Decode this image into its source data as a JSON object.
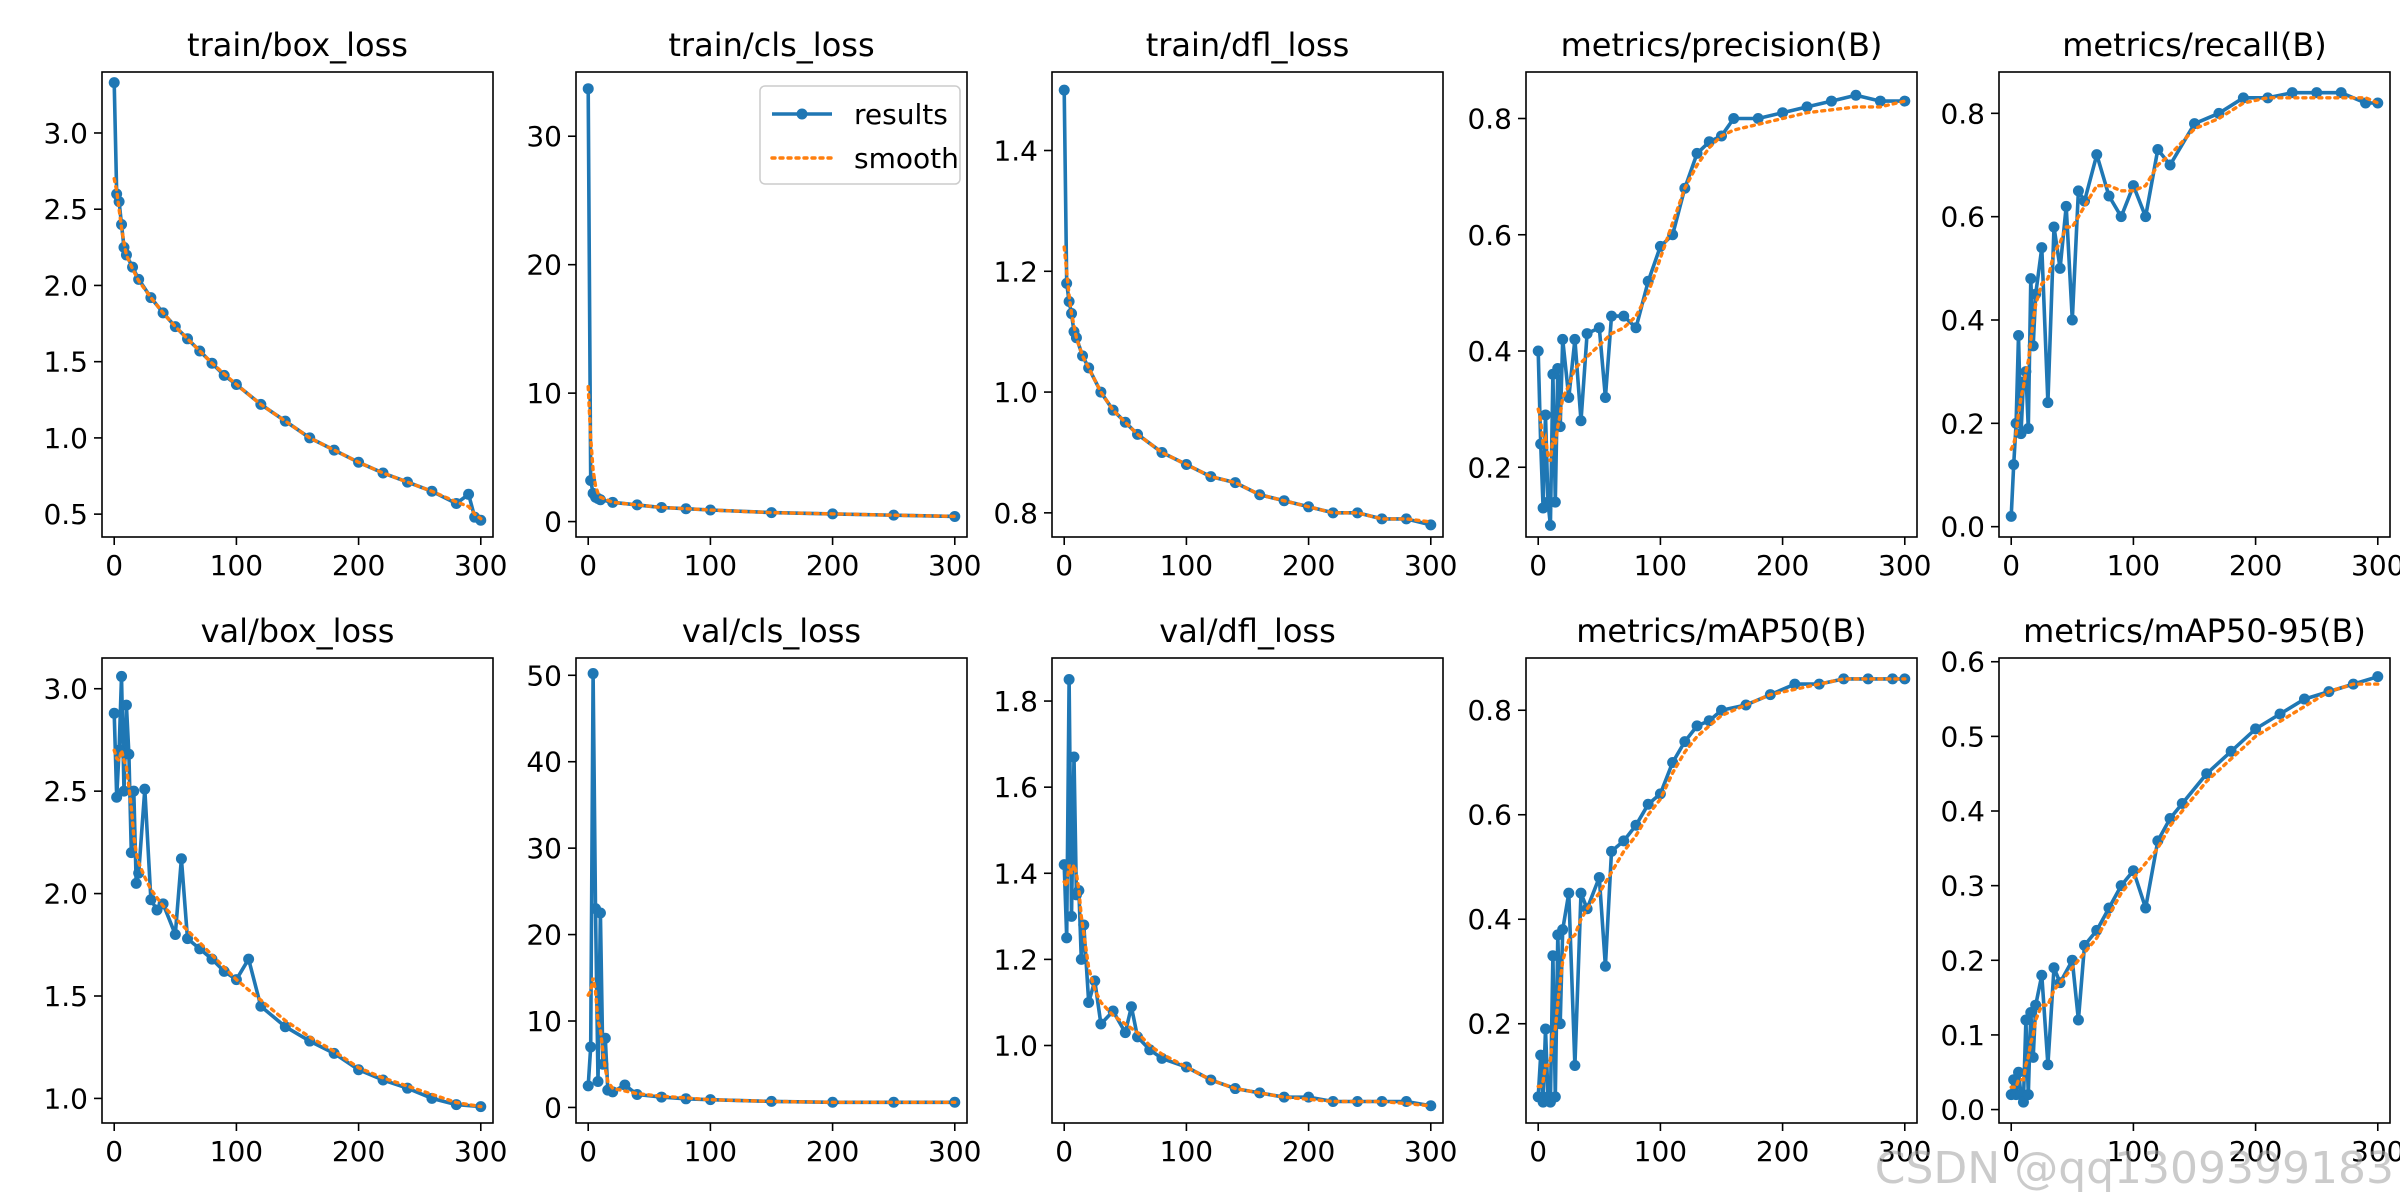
{
  "figure": {
    "watermark": "CSDN @qq1309399183",
    "colors": {
      "results": "#1f77b4",
      "smooth": "#ff7f0e"
    },
    "legend": {
      "results_label": "results",
      "smooth_label": "smooth",
      "location": "upper-right of train/cls_loss panel"
    }
  },
  "chart_data": [
    {
      "type": "line",
      "title": "train/box_loss",
      "xlim": [
        -10,
        310
      ],
      "ylim": [
        0.35,
        3.4
      ],
      "xticks": [
        0,
        100,
        200,
        300
      ],
      "yticks": [
        0.5,
        1.0,
        1.5,
        2.0,
        2.5,
        3.0
      ],
      "x": [
        0,
        2,
        4,
        6,
        8,
        10,
        15,
        20,
        30,
        40,
        50,
        60,
        70,
        80,
        90,
        100,
        120,
        140,
        160,
        180,
        200,
        220,
        240,
        260,
        280,
        290,
        295,
        300
      ],
      "series": [
        {
          "name": "results",
          "values": [
            3.33,
            2.6,
            2.55,
            2.4,
            2.25,
            2.2,
            2.12,
            2.04,
            1.92,
            1.82,
            1.73,
            1.65,
            1.57,
            1.49,
            1.41,
            1.35,
            1.22,
            1.11,
            1.0,
            0.92,
            0.84,
            0.77,
            0.71,
            0.65,
            0.57,
            0.63,
            0.48,
            0.46
          ]
        },
        {
          "name": "smooth",
          "values": [
            2.7,
            2.62,
            2.5,
            2.38,
            2.28,
            2.2,
            2.11,
            2.03,
            1.92,
            1.82,
            1.73,
            1.65,
            1.57,
            1.49,
            1.42,
            1.35,
            1.22,
            1.11,
            1.0,
            0.92,
            0.84,
            0.77,
            0.71,
            0.65,
            0.58,
            0.55,
            0.5,
            0.47
          ]
        }
      ]
    },
    {
      "type": "line",
      "title": "train/cls_loss",
      "xlim": [
        -10,
        310
      ],
      "ylim": [
        -1.2,
        35
      ],
      "legend": true,
      "xticks": [
        0,
        100,
        200,
        300
      ],
      "yticks": [
        0,
        10,
        20,
        30
      ],
      "x": [
        0,
        2,
        4,
        6,
        8,
        10,
        20,
        40,
        60,
        80,
        100,
        150,
        200,
        250,
        300
      ],
      "series": [
        {
          "name": "results",
          "values": [
            33.7,
            3.2,
            2.2,
            1.9,
            1.8,
            1.7,
            1.5,
            1.3,
            1.1,
            1.0,
            0.9,
            0.7,
            0.6,
            0.5,
            0.4
          ]
        },
        {
          "name": "smooth",
          "values": [
            10.5,
            6.5,
            4.0,
            2.8,
            2.2,
            1.9,
            1.5,
            1.3,
            1.1,
            1.0,
            0.9,
            0.7,
            0.6,
            0.5,
            0.4
          ]
        }
      ]
    },
    {
      "type": "line",
      "title": "train/dfl_loss",
      "xlim": [
        -10,
        310
      ],
      "ylim": [
        0.76,
        1.53
      ],
      "xticks": [
        0,
        100,
        200,
        300
      ],
      "yticks": [
        0.8,
        1.0,
        1.2,
        1.4
      ],
      "x": [
        0,
        2,
        4,
        6,
        8,
        10,
        15,
        20,
        30,
        40,
        50,
        60,
        80,
        100,
        120,
        140,
        160,
        180,
        200,
        220,
        240,
        260,
        280,
        300
      ],
      "series": [
        {
          "name": "results",
          "values": [
            1.5,
            1.18,
            1.15,
            1.13,
            1.1,
            1.09,
            1.06,
            1.04,
            1.0,
            0.97,
            0.95,
            0.93,
            0.9,
            0.88,
            0.86,
            0.85,
            0.83,
            0.82,
            0.81,
            0.8,
            0.8,
            0.79,
            0.79,
            0.78
          ]
        },
        {
          "name": "smooth",
          "values": [
            1.24,
            1.2,
            1.16,
            1.13,
            1.11,
            1.09,
            1.06,
            1.04,
            1.0,
            0.97,
            0.95,
            0.93,
            0.9,
            0.88,
            0.86,
            0.85,
            0.83,
            0.82,
            0.81,
            0.8,
            0.8,
            0.79,
            0.79,
            0.785
          ]
        }
      ]
    },
    {
      "type": "line",
      "title": "metrics/precision(B)",
      "xlim": [
        -10,
        310
      ],
      "ylim": [
        0.08,
        0.88
      ],
      "xticks": [
        0,
        100,
        200,
        300
      ],
      "yticks": [
        0.2,
        0.4,
        0.6,
        0.8
      ],
      "x": [
        0,
        2,
        4,
        6,
        8,
        10,
        12,
        14,
        16,
        18,
        20,
        25,
        30,
        35,
        40,
        50,
        55,
        60,
        70,
        80,
        90,
        100,
        110,
        120,
        130,
        140,
        150,
        160,
        180,
        200,
        220,
        240,
        260,
        280,
        300
      ],
      "series": [
        {
          "name": "results",
          "values": [
            0.4,
            0.24,
            0.13,
            0.29,
            0.14,
            0.1,
            0.36,
            0.14,
            0.37,
            0.27,
            0.42,
            0.32,
            0.42,
            0.28,
            0.43,
            0.44,
            0.32,
            0.46,
            0.46,
            0.44,
            0.52,
            0.58,
            0.6,
            0.68,
            0.74,
            0.76,
            0.77,
            0.8,
            0.8,
            0.81,
            0.82,
            0.83,
            0.84,
            0.83,
            0.83
          ]
        },
        {
          "name": "smooth",
          "values": [
            0.3,
            0.28,
            0.24,
            0.25,
            0.22,
            0.21,
            0.25,
            0.24,
            0.27,
            0.29,
            0.32,
            0.34,
            0.37,
            0.38,
            0.39,
            0.41,
            0.42,
            0.43,
            0.44,
            0.46,
            0.5,
            0.56,
            0.62,
            0.68,
            0.72,
            0.75,
            0.77,
            0.78,
            0.79,
            0.8,
            0.81,
            0.815,
            0.82,
            0.82,
            0.83
          ]
        }
      ]
    },
    {
      "type": "line",
      "title": "metrics/recall(B)",
      "xlim": [
        -10,
        310
      ],
      "ylim": [
        -0.02,
        0.88
      ],
      "xticks": [
        0,
        100,
        200,
        300
      ],
      "yticks": [
        0.0,
        0.2,
        0.4,
        0.6,
        0.8
      ],
      "x": [
        0,
        2,
        4,
        6,
        8,
        10,
        12,
        14,
        16,
        18,
        20,
        25,
        30,
        35,
        40,
        45,
        50,
        55,
        60,
        70,
        80,
        90,
        100,
        110,
        120,
        130,
        150,
        170,
        190,
        210,
        230,
        250,
        270,
        290,
        300
      ],
      "series": [
        {
          "name": "results",
          "values": [
            0.02,
            0.12,
            0.2,
            0.37,
            0.18,
            0.28,
            0.3,
            0.19,
            0.48,
            0.35,
            0.45,
            0.54,
            0.24,
            0.58,
            0.5,
            0.62,
            0.4,
            0.65,
            0.63,
            0.72,
            0.64,
            0.6,
            0.66,
            0.6,
            0.73,
            0.7,
            0.78,
            0.8,
            0.83,
            0.83,
            0.84,
            0.84,
            0.84,
            0.82,
            0.82
          ]
        },
        {
          "name": "smooth",
          "values": [
            0.15,
            0.16,
            0.18,
            0.22,
            0.25,
            0.27,
            0.3,
            0.32,
            0.36,
            0.4,
            0.43,
            0.47,
            0.48,
            0.53,
            0.55,
            0.58,
            0.58,
            0.6,
            0.62,
            0.66,
            0.66,
            0.65,
            0.65,
            0.66,
            0.7,
            0.72,
            0.77,
            0.79,
            0.82,
            0.83,
            0.83,
            0.83,
            0.83,
            0.83,
            0.82
          ]
        }
      ]
    },
    {
      "type": "line",
      "title": "val/box_loss",
      "xlim": [
        -10,
        310
      ],
      "ylim": [
        0.88,
        3.15
      ],
      "xticks": [
        0,
        100,
        200,
        300
      ],
      "yticks": [
        1.0,
        1.5,
        2.0,
        2.5,
        3.0
      ],
      "x": [
        0,
        2,
        4,
        6,
        8,
        10,
        12,
        14,
        16,
        18,
        20,
        25,
        30,
        35,
        40,
        50,
        55,
        60,
        70,
        80,
        90,
        100,
        110,
        120,
        140,
        160,
        180,
        200,
        220,
        240,
        260,
        280,
        300
      ],
      "series": [
        {
          "name": "results",
          "values": [
            2.88,
            2.47,
            2.7,
            3.06,
            2.5,
            2.92,
            2.68,
            2.2,
            2.5,
            2.05,
            2.1,
            2.51,
            1.97,
            1.92,
            1.95,
            1.8,
            2.17,
            1.78,
            1.73,
            1.68,
            1.62,
            1.58,
            1.68,
            1.45,
            1.35,
            1.28,
            1.22,
            1.14,
            1.09,
            1.05,
            1.0,
            0.97,
            0.96
          ]
        },
        {
          "name": "smooth",
          "values": [
            2.7,
            2.66,
            2.65,
            2.7,
            2.65,
            2.62,
            2.52,
            2.42,
            2.28,
            2.2,
            2.15,
            2.08,
            2.02,
            1.98,
            1.94,
            1.88,
            1.85,
            1.82,
            1.76,
            1.7,
            1.64,
            1.58,
            1.53,
            1.48,
            1.38,
            1.3,
            1.23,
            1.15,
            1.1,
            1.06,
            1.02,
            0.98,
            0.96
          ]
        }
      ]
    },
    {
      "type": "line",
      "title": "val/cls_loss",
      "xlim": [
        -10,
        310
      ],
      "ylim": [
        -1.8,
        52
      ],
      "xticks": [
        0,
        100,
        200,
        300
      ],
      "yticks": [
        0,
        10,
        20,
        30,
        40,
        50
      ],
      "x": [
        0,
        2,
        4,
        6,
        8,
        10,
        12,
        14,
        16,
        20,
        30,
        40,
        60,
        80,
        100,
        150,
        200,
        250,
        300
      ],
      "series": [
        {
          "name": "results",
          "values": [
            2.5,
            7.0,
            50.2,
            23.0,
            3.0,
            22.5,
            5.0,
            8.0,
            2.0,
            1.8,
            2.6,
            1.5,
            1.2,
            1.0,
            0.9,
            0.7,
            0.6,
            0.6,
            0.6
          ]
        },
        {
          "name": "smooth",
          "values": [
            13.0,
            13.5,
            15.0,
            13.5,
            10.0,
            9.0,
            6.5,
            4.5,
            3.0,
            2.2,
            1.9,
            1.6,
            1.3,
            1.1,
            0.9,
            0.7,
            0.6,
            0.6,
            0.6
          ]
        }
      ]
    },
    {
      "type": "line",
      "title": "val/dfl_loss",
      "xlim": [
        -10,
        310
      ],
      "ylim": [
        0.82,
        1.9
      ],
      "xticks": [
        0,
        100,
        200,
        300
      ],
      "yticks": [
        1.0,
        1.2,
        1.4,
        1.6,
        1.8
      ],
      "x": [
        0,
        2,
        4,
        6,
        8,
        10,
        12,
        14,
        16,
        20,
        25,
        30,
        40,
        50,
        55,
        60,
        70,
        80,
        100,
        120,
        140,
        160,
        180,
        200,
        220,
        240,
        260,
        280,
        300
      ],
      "series": [
        {
          "name": "results",
          "values": [
            1.42,
            1.25,
            1.85,
            1.3,
            1.67,
            1.35,
            1.36,
            1.2,
            1.28,
            1.1,
            1.15,
            1.05,
            1.08,
            1.03,
            1.09,
            1.02,
            0.99,
            0.97,
            0.95,
            0.92,
            0.9,
            0.89,
            0.88,
            0.88,
            0.87,
            0.87,
            0.87,
            0.87,
            0.86
          ]
        },
        {
          "name": "smooth",
          "values": [
            1.38,
            1.37,
            1.42,
            1.4,
            1.42,
            1.4,
            1.36,
            1.3,
            1.26,
            1.18,
            1.13,
            1.1,
            1.07,
            1.05,
            1.04,
            1.03,
            1.0,
            0.98,
            0.95,
            0.92,
            0.9,
            0.89,
            0.88,
            0.875,
            0.87,
            0.87,
            0.87,
            0.865,
            0.86
          ]
        }
      ]
    },
    {
      "type": "line",
      "title": "metrics/mAP50(B)",
      "xlim": [
        -10,
        310
      ],
      "ylim": [
        0.01,
        0.9
      ],
      "xticks": [
        0,
        100,
        200,
        300
      ],
      "yticks": [
        0.2,
        0.4,
        0.6,
        0.8
      ],
      "x": [
        0,
        2,
        4,
        6,
        8,
        10,
        12,
        14,
        16,
        18,
        20,
        25,
        30,
        35,
        40,
        50,
        55,
        60,
        70,
        80,
        90,
        100,
        110,
        120,
        130,
        140,
        150,
        170,
        190,
        210,
        230,
        250,
        270,
        290,
        300
      ],
      "series": [
        {
          "name": "results",
          "values": [
            0.06,
            0.14,
            0.05,
            0.19,
            0.06,
            0.05,
            0.33,
            0.06,
            0.37,
            0.2,
            0.38,
            0.45,
            0.12,
            0.45,
            0.42,
            0.48,
            0.31,
            0.53,
            0.55,
            0.58,
            0.62,
            0.64,
            0.7,
            0.74,
            0.77,
            0.78,
            0.8,
            0.81,
            0.83,
            0.85,
            0.85,
            0.86,
            0.86,
            0.86,
            0.86
          ]
        },
        {
          "name": "smooth",
          "values": [
            0.08,
            0.08,
            0.09,
            0.12,
            0.12,
            0.13,
            0.18,
            0.19,
            0.24,
            0.28,
            0.32,
            0.36,
            0.37,
            0.4,
            0.42,
            0.45,
            0.47,
            0.49,
            0.53,
            0.56,
            0.6,
            0.63,
            0.68,
            0.72,
            0.75,
            0.77,
            0.79,
            0.81,
            0.83,
            0.84,
            0.85,
            0.86,
            0.86,
            0.86,
            0.86
          ]
        }
      ]
    },
    {
      "type": "line",
      "title": "metrics/mAP50-95(B)",
      "xlim": [
        -10,
        310
      ],
      "ylim": [
        -0.018,
        0.605
      ],
      "xticks": [
        0,
        100,
        200,
        300
      ],
      "yticks": [
        0.0,
        0.1,
        0.2,
        0.3,
        0.4,
        0.5,
        0.6
      ],
      "x": [
        0,
        2,
        4,
        6,
        8,
        10,
        12,
        14,
        16,
        18,
        20,
        25,
        30,
        35,
        40,
        50,
        55,
        60,
        70,
        80,
        90,
        100,
        110,
        120,
        130,
        140,
        160,
        180,
        200,
        220,
        240,
        260,
        280,
        300
      ],
      "series": [
        {
          "name": "results",
          "values": [
            0.02,
            0.04,
            0.02,
            0.05,
            0.02,
            0.01,
            0.12,
            0.02,
            0.13,
            0.07,
            0.14,
            0.18,
            0.06,
            0.19,
            0.17,
            0.2,
            0.12,
            0.22,
            0.24,
            0.27,
            0.3,
            0.32,
            0.27,
            0.36,
            0.39,
            0.41,
            0.45,
            0.48,
            0.51,
            0.53,
            0.55,
            0.56,
            0.57,
            0.58
          ]
        },
        {
          "name": "smooth",
          "values": [
            0.03,
            0.03,
            0.03,
            0.04,
            0.04,
            0.04,
            0.06,
            0.07,
            0.09,
            0.1,
            0.12,
            0.14,
            0.14,
            0.16,
            0.17,
            0.19,
            0.2,
            0.21,
            0.23,
            0.26,
            0.29,
            0.31,
            0.33,
            0.35,
            0.38,
            0.4,
            0.44,
            0.47,
            0.5,
            0.52,
            0.54,
            0.56,
            0.57,
            0.57
          ]
        }
      ]
    }
  ]
}
